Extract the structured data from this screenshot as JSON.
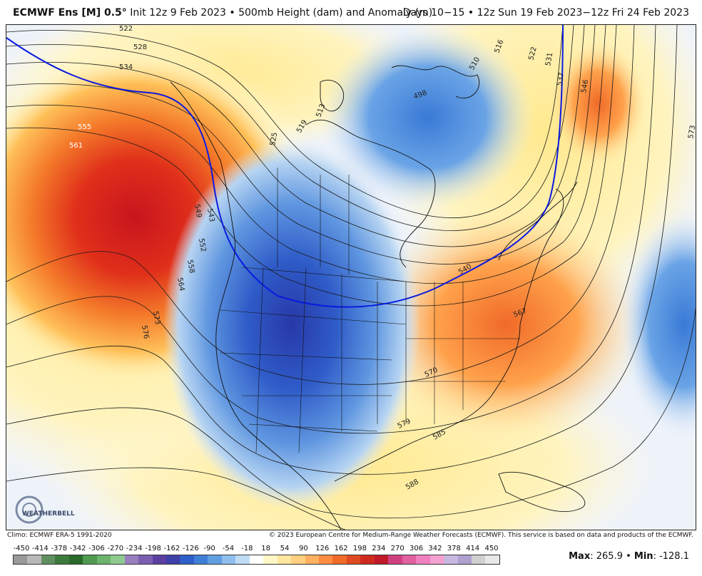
{
  "header": {
    "model": "ECMWF Ens [M] 0.5°",
    "init": "Init 12z 9 Feb 2023",
    "field": "500mb Height (dam) and Anomaly (m)",
    "valid": "Days 10−15 • 12z Sun 19 Feb 2023−12z Fri 24 Feb 2023"
  },
  "map": {
    "contour_labels": [
      "522",
      "528",
      "534",
      "555",
      "561",
      "525",
      "519",
      "513",
      "498",
      "510",
      "516",
      "522",
      "531",
      "537",
      "546",
      "573",
      "549",
      "552",
      "558",
      "564",
      "573",
      "576",
      "543",
      "540",
      "567",
      "570",
      "579",
      "585",
      "588"
    ]
  },
  "footer": {
    "climo": "Climo: ECMWF ERA-5 1991-2020",
    "copyright": "© 2023 European Centre for Medium-Range Weather Forecasts (ECMWF). This service is based on data and products of the ECMWF.",
    "max_label": "Max",
    "max_value": "265.9",
    "min_label": "Min",
    "min_value": "-128.1"
  },
  "colorbar": {
    "ticks": [
      "-450",
      "-414",
      "-378",
      "-342",
      "-306",
      "-270",
      "-234",
      "-198",
      "-162",
      "-126",
      "-90",
      "-54",
      "-18",
      "18",
      "54",
      "90",
      "126",
      "162",
      "198",
      "234",
      "270",
      "306",
      "342",
      "378",
      "414",
      "450"
    ],
    "colors": [
      "#9a9a9a",
      "#b8b8b8",
      "#5f8f5f",
      "#3d7a3d",
      "#2a6a2a",
      "#4f9a4f",
      "#6db36d",
      "#8ec98e",
      "#9a7fbf",
      "#7b5eb0",
      "#5b3fa0",
      "#3f3fa8",
      "#2f5fc8",
      "#3f7fd8",
      "#5f9fe0",
      "#8fbfee",
      "#bfdcf5",
      "#ffffff",
      "#fff7c8",
      "#ffe7a0",
      "#ffd080",
      "#ffb060",
      "#ff8c40",
      "#f06a28",
      "#e04a20",
      "#d02a20",
      "#c01a2a",
      "#d04080",
      "#e060a0",
      "#f080c0",
      "#f4a0d0",
      "#c8b8e0",
      "#b0a0d0",
      "#d0d0d0",
      "#e8e8e8"
    ]
  },
  "logo": {
    "text": "WEATHERBELL"
  }
}
